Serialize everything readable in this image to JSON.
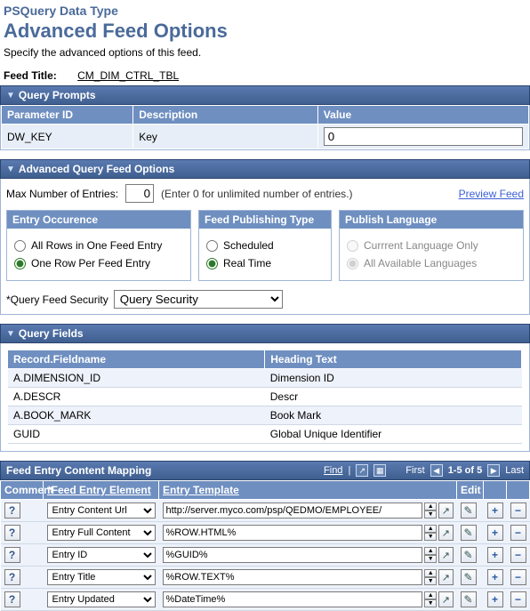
{
  "page": {
    "type_label": "PSQuery Data Type",
    "title": "Advanced Feed Options",
    "subtitle": "Specify the advanced options of this feed.",
    "feed_title_label": "Feed Title:",
    "feed_title_value": "CM_DIM_CTRL_TBL"
  },
  "colors": {
    "header_bg_start": "#5a7ab0",
    "header_bg_end": "#3f5f90",
    "col_header": "#6f8fc0",
    "row_alt": "#eef2fa",
    "link": "#3b5fd6"
  },
  "query_prompts": {
    "section_title": "Query Prompts",
    "columns": {
      "param": "Parameter ID",
      "desc": "Description",
      "value": "Value"
    },
    "rows": [
      {
        "param": "DW_KEY",
        "desc": "Key",
        "value": "0"
      }
    ]
  },
  "adv_opts": {
    "section_title": "Advanced Query Feed Options",
    "max_label": "Max Number of Entries:",
    "max_value": "0",
    "max_hint": "(Enter 0 for unlimited number of entries.)",
    "preview_link": "Preview Feed",
    "entry_occurrence": {
      "legend": "Entry Occurence",
      "opt_all": "All Rows in One Feed Entry",
      "opt_one": "One Row Per Feed Entry",
      "selected": "one"
    },
    "feed_publishing": {
      "legend": "Feed Publishing Type",
      "opt_scheduled": "Scheduled",
      "opt_realtime": "Real Time",
      "selected": "realtime"
    },
    "publish_language": {
      "legend": "Publish Language",
      "opt_current": "Currrent Language Only",
      "opt_all": "All Available Languages",
      "selected": "all",
      "disabled": true
    },
    "query_feed_security": {
      "label": "*Query Feed Security",
      "selected": "Query Security",
      "options": [
        "Query Security"
      ]
    }
  },
  "query_fields": {
    "section_title": "Query Fields",
    "columns": {
      "rec": "Record.Fieldname",
      "head": "Heading Text"
    },
    "rows": [
      {
        "rec": "A.DIMENSION_ID",
        "head": "Dimension ID"
      },
      {
        "rec": "A.DESCR",
        "head": "Descr"
      },
      {
        "rec": "A.BOOK_MARK",
        "head": "Book Mark"
      },
      {
        "rec": "GUID",
        "head": "Global Unique Identifier"
      }
    ]
  },
  "mapping": {
    "section_title": "Feed Entry Content Mapping",
    "toolbar": {
      "find": "Find",
      "first": "First",
      "range": "1-5 of 5",
      "last": "Last"
    },
    "columns": {
      "comment": "Comment",
      "element": "*Feed Entry Element",
      "template": "Entry Template",
      "edit": "Edit"
    },
    "rows": [
      {
        "element": "Entry Content Url",
        "template": "http://server.myco.com/psp/QEDMO/EMPLOYEE/"
      },
      {
        "element": "Entry Full Content",
        "template": "%ROW.HTML%"
      },
      {
        "element": "Entry ID",
        "template": "%GUID%"
      },
      {
        "element": "Entry Title",
        "template": "%ROW.TEXT%"
      },
      {
        "element": "Entry Updated",
        "template": "%DateTime%"
      }
    ]
  }
}
